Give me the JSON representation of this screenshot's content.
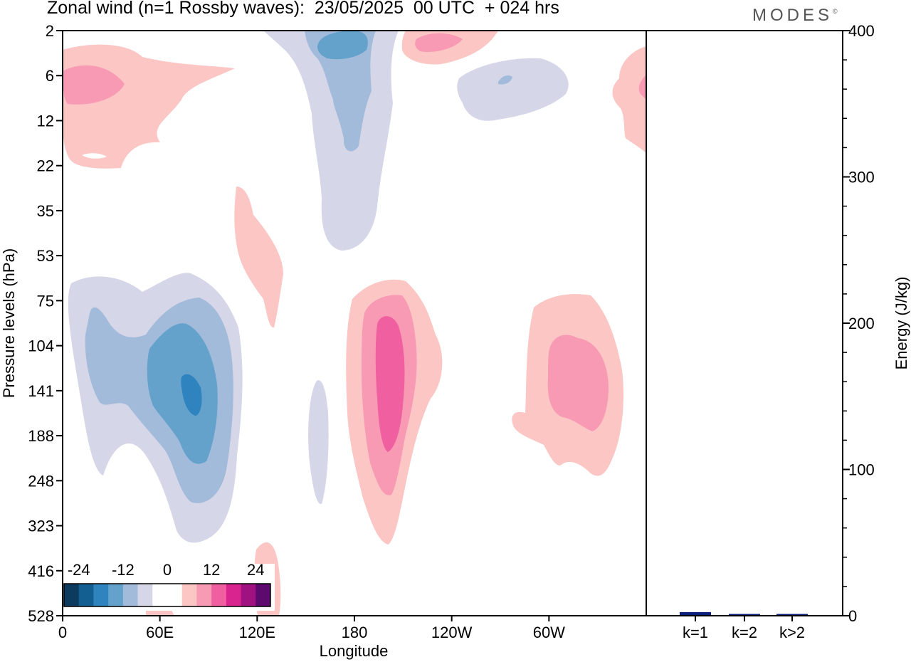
{
  "header": {
    "title": "Zonal wind (n=1 Rossby waves):  23/05/2025  00 UTC  + 024 hrs",
    "logo": "MODES",
    "logo_mark": "©"
  },
  "chart_data": [
    {
      "type": "heatmap",
      "title": "Zonal wind (n=1 Rossby waves):  23/05/2025  00 UTC  + 024 hrs",
      "xlabel": "Longitude",
      "ylabel": "Pressure levels (hPa)",
      "x_ticks": [
        "0",
        "60E",
        "120E",
        "180",
        "120W",
        "60W"
      ],
      "y_ticks": [
        "2",
        "6",
        "12",
        "22",
        "35",
        "53",
        "75",
        "104",
        "141",
        "188",
        "248",
        "323",
        "416",
        "528"
      ],
      "y_scale": "log pressure, inverted (2 hPa at top, 528 hPa at bottom)",
      "colorbar": {
        "labels": [
          "-24",
          "-12",
          "0",
          "12",
          "24"
        ],
        "colors": [
          "#0d3b5e",
          "#145f92",
          "#2f84bf",
          "#64a2cc",
          "#a3bbdb",
          "#d5d6e8",
          "#ffffff",
          "#ffffff",
          "#fbc6c4",
          "#f99ab5",
          "#f060a0",
          "#d9238e",
          "#a0127f",
          "#5d0a6f"
        ]
      },
      "features": [
        {
          "sign": "negative",
          "min_value": -24,
          "lon_center": "78E",
          "level_center_hPa": 141
        },
        {
          "sign": "negative",
          "min_value": -12,
          "lon_center": "175E",
          "level_hPa": 3
        },
        {
          "sign": "negative",
          "min_value": -12,
          "lon_center": "75W",
          "level_hPa": 6
        },
        {
          "sign": "positive",
          "max_value": 18,
          "lon_center": "165W",
          "level_center_hPa": 120
        },
        {
          "sign": "positive",
          "max_value": 12,
          "lon_center": "35W",
          "level_center_hPa": 130
        },
        {
          "sign": "positive",
          "max_value": 12,
          "lon_center": "20E",
          "level_hPa": 6
        },
        {
          "sign": "positive",
          "max_value": 12,
          "lon_center": "145W",
          "level_hPa": 3
        }
      ]
    },
    {
      "type": "bar",
      "categories": [
        "k=1",
        "k=2",
        "k>2"
      ],
      "values": [
        2,
        0.3,
        0.6
      ],
      "ylabel": "Energy (J/kg)",
      "ylim": [
        0,
        400
      ],
      "y_ticks": [
        "0",
        "100",
        "200",
        "300",
        "400"
      ],
      "color": "#0b1f7a"
    }
  ]
}
